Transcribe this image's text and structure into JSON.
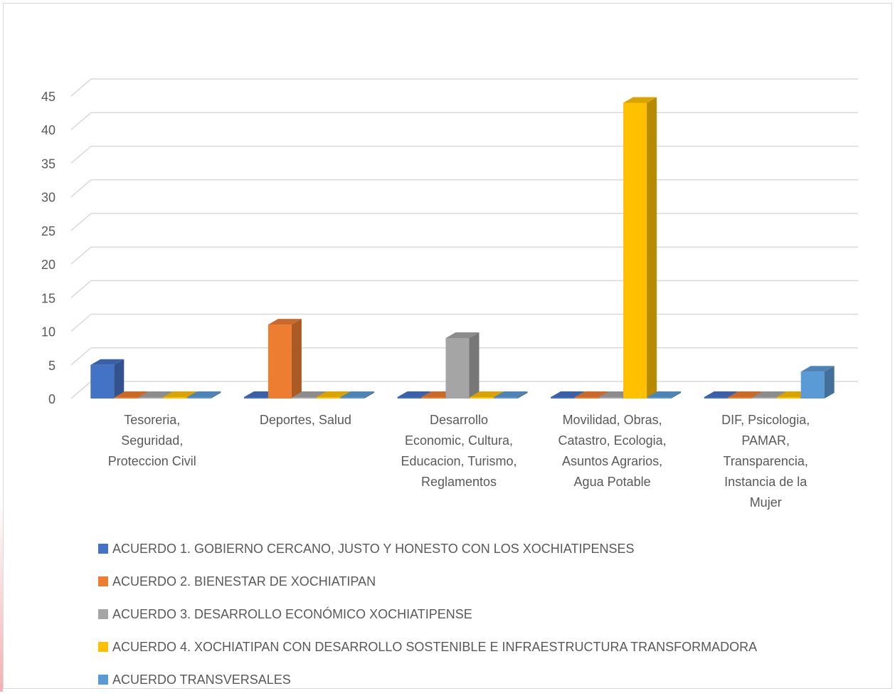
{
  "chart_data": {
    "type": "bar",
    "title": "",
    "xlabel": "",
    "ylabel": "",
    "ylim": [
      0,
      45
    ],
    "yticks": [
      0,
      5,
      10,
      15,
      20,
      25,
      30,
      35,
      40,
      45
    ],
    "grid": true,
    "legend_position": "bottom",
    "categories": [
      [
        "Tesoreria,",
        "Seguridad,",
        "Proteccion Civil"
      ],
      [
        "Deportes, Salud"
      ],
      [
        "Desarrollo",
        "Economic, Cultura,",
        "Educacion, Turismo,",
        "Reglamentos"
      ],
      [
        "Movilidad, Obras,",
        "Catastro, Ecologia,",
        "Asuntos Agrarios,",
        "Agua Potable"
      ],
      [
        "DIF, Psicologia,",
        "PAMAR,",
        "Transparencia,",
        "Instancia de la",
        "Mujer"
      ]
    ],
    "series": [
      {
        "name": "ACUERDO 1. GOBIERNO CERCANO, JUSTO Y HONESTO CON LOS XOCHIATIPENSES",
        "color": "#4472C4",
        "values": [
          5,
          0,
          0,
          0,
          0
        ]
      },
      {
        "name": "ACUERDO 2. BIENESTAR DE XOCHIATIPAN",
        "color": "#ED7D31",
        "values": [
          0,
          11,
          0,
          0,
          0
        ]
      },
      {
        "name": "ACUERDO 3. DESARROLLO ECONÓMICO XOCHIATIPENSE",
        "color": "#A5A5A5",
        "values": [
          0,
          0,
          9,
          0,
          0
        ]
      },
      {
        "name": "ACUERDO 4. XOCHIATIPAN CON DESARROLLO SOSTENIBLE E INFRAESTRUCTURA TRANSFORMADORA",
        "color": "#FFC000",
        "values": [
          0,
          0,
          0,
          44,
          0
        ]
      },
      {
        "name": "ACUERDO TRANSVERSALES",
        "color": "#5B9BD5",
        "values": [
          0,
          0,
          0,
          0,
          4
        ]
      }
    ]
  }
}
